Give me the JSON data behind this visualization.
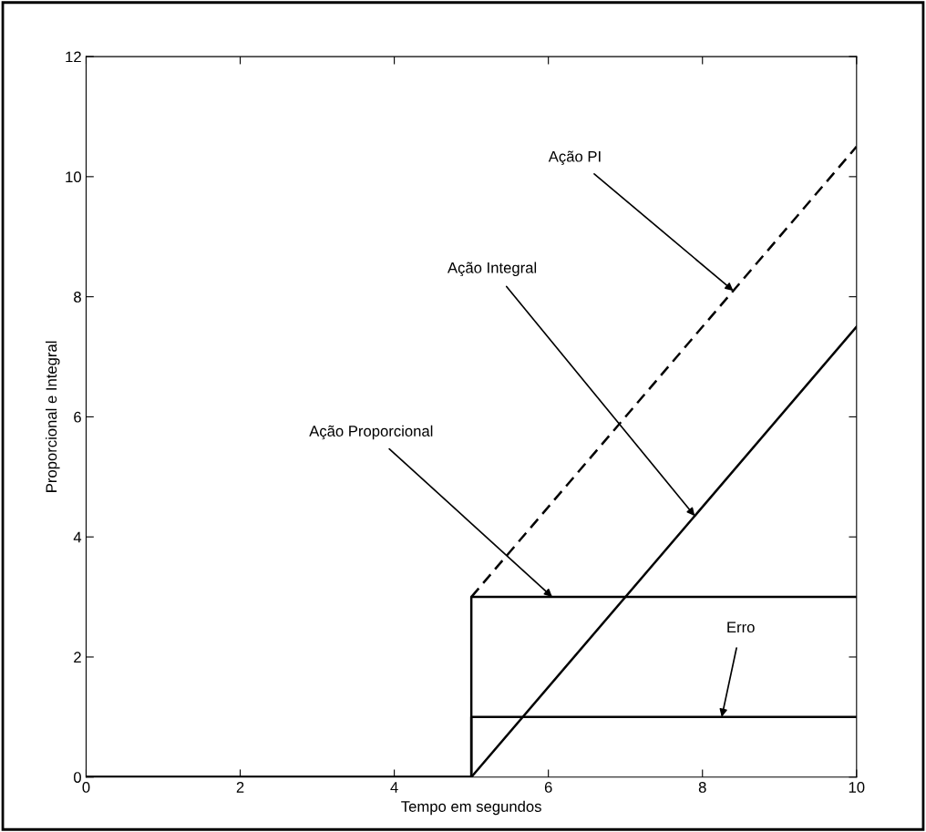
{
  "chart_data": {
    "type": "line",
    "xlabel": "Tempo em segundos",
    "ylabel": "Proporcional e Integral",
    "xlim": [
      0,
      10
    ],
    "ylim": [
      0,
      12
    ],
    "xticks": [
      0,
      2,
      4,
      6,
      8,
      10
    ],
    "yticks": [
      0,
      2,
      4,
      6,
      8,
      10,
      12
    ],
    "grid": false,
    "marker": "none",
    "series": [
      {
        "color": "#000000",
        "x": [
          0,
          5,
          5,
          10
        ],
        "values": [
          0,
          0,
          3,
          3
        ],
        "line_style": "solid"
      },
      {
        "color": "#000000",
        "x": [
          0,
          5,
          5,
          10
        ],
        "values": [
          0,
          0,
          1,
          1
        ],
        "line_style": "solid"
      },
      {
        "color": "#000000",
        "x": [
          0,
          5,
          10
        ],
        "values": [
          0,
          0,
          7.5
        ],
        "line_style": "solid"
      },
      {
        "color": "#000000",
        "x": [
          5,
          10
        ],
        "values": [
          3,
          10.5
        ],
        "line_style": "dashed"
      }
    ],
    "annotations": [
      {
        "text": "Ação PI",
        "x": 8.4,
        "y": 8.1
      },
      {
        "text": "Ação Integral",
        "x": 7.9,
        "y": 4.35
      },
      {
        "text": "Ação Proporcional",
        "x": 6.05,
        "y": 3
      },
      {
        "text": "Erro",
        "x": 8.25,
        "y": 1
      }
    ]
  }
}
